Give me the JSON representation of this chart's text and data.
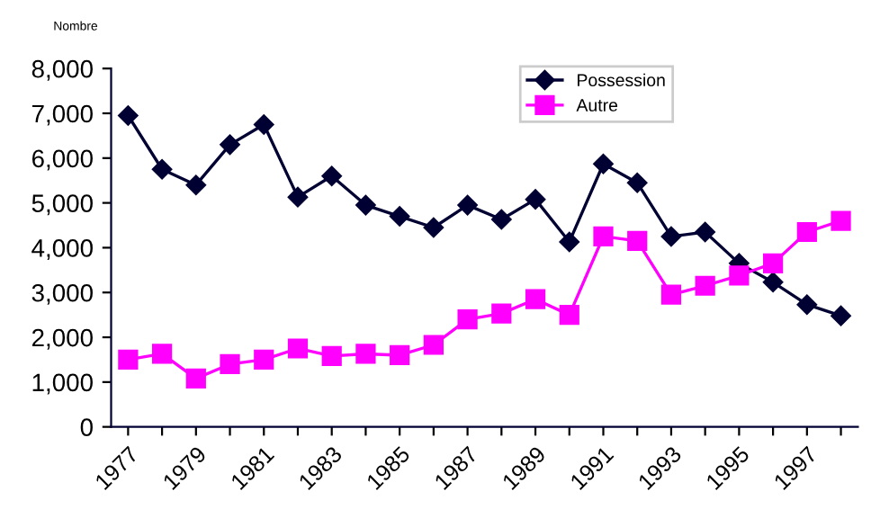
{
  "chart_data": {
    "type": "line",
    "ylabel": "Nombre",
    "categories": [
      "1977",
      null,
      "1979",
      null,
      "1981",
      null,
      "1983",
      null,
      "1985",
      null,
      "1987",
      null,
      "1989",
      null,
      "1991",
      null,
      "1993",
      null,
      "1995",
      null,
      "1997",
      null
    ],
    "series": [
      {
        "name": "Possession",
        "color": "#000033",
        "marker": "diamond",
        "values": [
          6950,
          5750,
          5400,
          6300,
          6750,
          5130,
          5600,
          4950,
          4700,
          4450,
          4950,
          4630,
          5080,
          4130,
          5870,
          5450,
          4250,
          4350,
          3650,
          3230,
          2730,
          2480
        ]
      },
      {
        "name": "Autre",
        "color": "#ff00ff",
        "marker": "square",
        "values": [
          1500,
          1630,
          1080,
          1400,
          1500,
          1750,
          1580,
          1630,
          1600,
          1830,
          2400,
          2530,
          2850,
          2500,
          4250,
          4150,
          2950,
          3150,
          3380,
          3650,
          4350,
          4600
        ]
      }
    ],
    "ylim": [
      0,
      8000
    ],
    "yticks": [
      {
        "value": 0,
        "label": "0"
      },
      {
        "value": 1000,
        "label": "1,000"
      },
      {
        "value": 2000,
        "label": "2,000"
      },
      {
        "value": 3000,
        "label": "3,000"
      },
      {
        "value": 4000,
        "label": "4,000"
      },
      {
        "value": 5000,
        "label": "5,000"
      },
      {
        "value": 6000,
        "label": "6,000"
      },
      {
        "value": 7000,
        "label": "7,000"
      },
      {
        "value": 8000,
        "label": "8,000"
      }
    ],
    "grid": false,
    "legend": "top"
  }
}
